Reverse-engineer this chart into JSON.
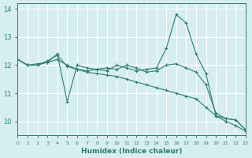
{
  "xlabel": "Humidex (Indice chaleur)",
  "ylabel": "",
  "bg_color": "#d6eef2",
  "grid_color": "#ffffff",
  "line_color": "#2e7d6e",
  "xlim": [
    0,
    23
  ],
  "ylim": [
    9.5,
    14.2
  ],
  "xticks": [
    0,
    1,
    2,
    3,
    4,
    5,
    6,
    7,
    8,
    9,
    10,
    11,
    12,
    13,
    14,
    15,
    16,
    17,
    18,
    19,
    20,
    21,
    22,
    23
  ],
  "yticks": [
    10,
    11,
    12,
    13,
    14
  ],
  "line1_x": [
    0,
    1,
    2,
    3,
    4,
    5,
    6,
    7,
    8,
    9,
    10,
    11,
    12,
    13,
    14,
    15,
    16,
    17,
    18,
    19,
    20,
    21,
    22,
    23
  ],
  "line1_y": [
    12.2,
    12.0,
    12.0,
    12.1,
    12.4,
    10.7,
    12.0,
    11.9,
    11.85,
    11.8,
    12.0,
    11.9,
    11.8,
    11.85,
    11.9,
    12.6,
    13.8,
    13.5,
    12.4,
    11.7,
    10.2,
    10.1,
    10.05,
    9.7
  ],
  "line2_x": [
    0,
    1,
    2,
    3,
    4,
    5,
    6,
    7,
    8,
    9,
    10,
    11,
    12,
    13,
    14,
    15,
    16,
    17,
    18,
    19,
    20,
    21,
    22,
    23
  ],
  "line2_y": [
    12.2,
    12.0,
    12.0,
    12.15,
    12.35,
    11.95,
    11.85,
    11.8,
    11.85,
    11.9,
    11.85,
    12.0,
    11.9,
    11.75,
    11.8,
    12.0,
    12.05,
    11.9,
    11.75,
    11.3,
    10.3,
    10.1,
    10.05,
    9.7
  ],
  "line3_x": [
    0,
    1,
    2,
    3,
    4,
    5,
    6,
    7,
    8,
    9,
    10,
    11,
    12,
    13,
    14,
    15,
    16,
    17,
    18,
    19,
    20,
    21,
    22,
    23
  ],
  "line3_y": [
    12.2,
    12.0,
    12.05,
    12.1,
    12.2,
    12.0,
    11.85,
    11.75,
    11.7,
    11.65,
    11.6,
    11.5,
    11.4,
    11.3,
    11.2,
    11.1,
    11.0,
    10.9,
    10.8,
    10.5,
    10.2,
    10.0,
    9.85,
    9.65
  ],
  "markers_x": [
    0,
    1,
    2,
    3,
    4,
    5,
    6,
    7,
    8,
    9,
    10,
    11,
    12,
    13,
    14,
    15,
    16,
    17,
    18,
    19,
    20,
    21,
    22,
    23
  ],
  "markers1_y": [
    12.2,
    12.0,
    12.0,
    12.1,
    12.4,
    10.7,
    12.0,
    11.9,
    11.85,
    11.8,
    12.0,
    11.9,
    11.8,
    11.85,
    11.9,
    12.6,
    13.8,
    13.5,
    12.4,
    11.7,
    10.2,
    10.1,
    10.05,
    9.7
  ],
  "markers2_y": [
    12.2,
    12.0,
    12.0,
    12.15,
    12.35,
    11.95,
    11.85,
    11.8,
    11.85,
    11.9,
    11.85,
    12.0,
    11.9,
    11.75,
    11.8,
    12.0,
    12.05,
    11.9,
    11.75,
    11.3,
    10.3,
    10.1,
    10.05,
    9.7
  ],
  "markers3_y": [
    12.2,
    12.0,
    12.05,
    12.1,
    12.2,
    12.0,
    11.85,
    11.75,
    11.7,
    11.65,
    11.6,
    11.5,
    11.4,
    11.3,
    11.2,
    11.1,
    11.0,
    10.9,
    10.8,
    10.5,
    10.2,
    10.0,
    9.85,
    9.65
  ]
}
